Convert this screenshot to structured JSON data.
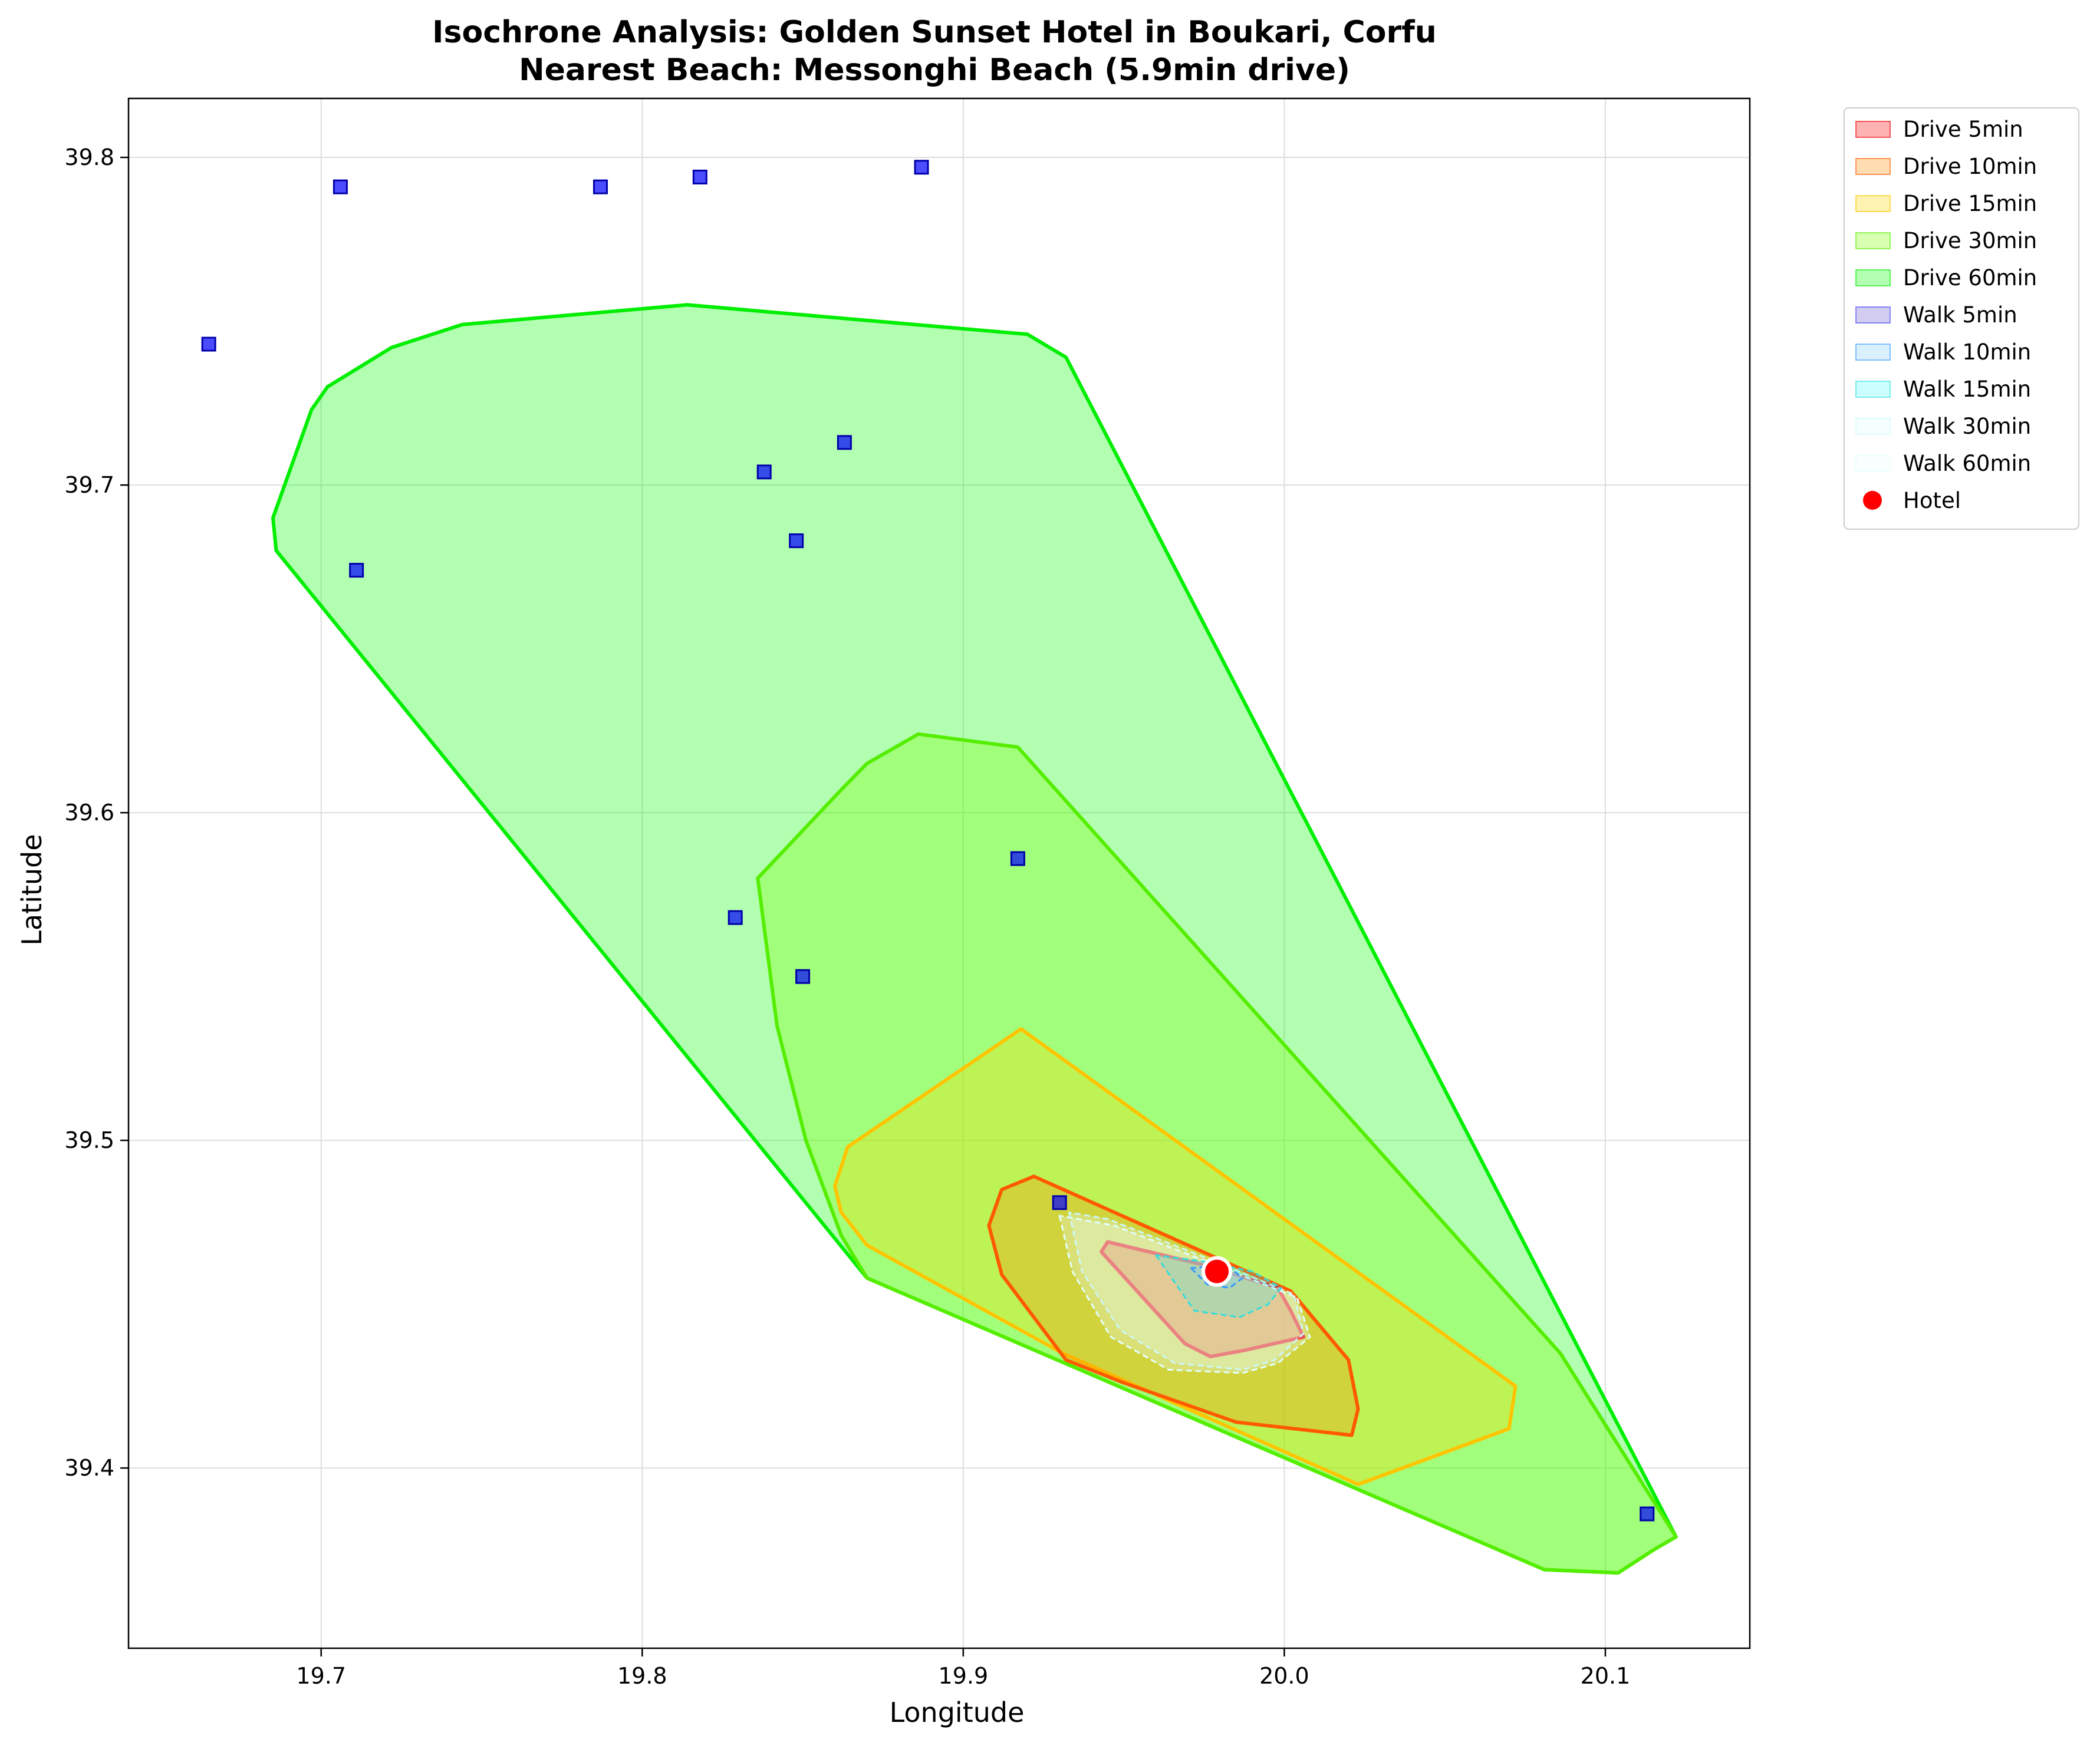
{
  "chart_data": {
    "type": "isochrone-map",
    "title_line1": "Isochrone Analysis: Golden Sunset Hotel in Boukari, Corfu",
    "title_line2": "Nearest Beach: Messonghi Beach (5.9min drive)",
    "xlabel": "Longitude",
    "ylabel": "Latitude",
    "xlim": [
      19.64,
      20.145
    ],
    "ylim": [
      39.345,
      39.818
    ],
    "xticks": [
      19.7,
      19.8,
      19.9,
      20.0,
      20.1
    ],
    "yticks": [
      39.4,
      39.5,
      39.6,
      39.7,
      39.8
    ],
    "xtick_labels": [
      "19.7",
      "19.8",
      "19.9",
      "20.0",
      "20.1"
    ],
    "ytick_labels": [
      "39.4",
      "39.5",
      "39.6",
      "39.7",
      "39.8"
    ],
    "grid": true,
    "legend_position": "outside-top-right",
    "hotel": {
      "name": "Hotel",
      "lon": 19.979,
      "lat": 39.46,
      "color": "#ff0000"
    },
    "isochrones": [
      {
        "name": "Drive 60min",
        "mode": "drive",
        "minutes": 60,
        "fill": "#00ff00",
        "edge": "#00ee00",
        "alpha": 0.3,
        "dash": false,
        "polygon": [
          [
            19.686,
            39.68
          ],
          [
            19.685,
            39.69
          ],
          [
            19.697,
            39.723
          ],
          [
            19.702,
            39.73
          ],
          [
            19.722,
            39.742
          ],
          [
            19.744,
            39.749
          ],
          [
            19.814,
            39.755
          ],
          [
            19.92,
            39.746
          ],
          [
            19.932,
            39.739
          ],
          [
            20.122,
            39.379
          ],
          [
            20.115,
            39.375
          ],
          [
            20.104,
            39.368
          ],
          [
            20.081,
            39.369
          ],
          [
            19.87,
            39.458
          ]
        ]
      },
      {
        "name": "Drive 30min",
        "mode": "drive",
        "minutes": 30,
        "fill": "#7fff00",
        "edge": "#55ee00",
        "alpha": 0.3,
        "dash": false,
        "polygon": [
          [
            19.836,
            39.58
          ],
          [
            19.842,
            39.535
          ],
          [
            19.851,
            39.5
          ],
          [
            19.862,
            39.471
          ],
          [
            19.87,
            39.458
          ],
          [
            20.081,
            39.369
          ],
          [
            20.104,
            39.368
          ],
          [
            20.115,
            39.375
          ],
          [
            20.122,
            39.379
          ],
          [
            20.086,
            39.435
          ],
          [
            19.917,
            39.62
          ],
          [
            19.886,
            39.624
          ],
          [
            19.87,
            39.615
          ],
          [
            19.862,
            39.607
          ]
        ]
      },
      {
        "name": "Drive 15min",
        "mode": "drive",
        "minutes": 15,
        "fill": "#ffd700",
        "edge": "#ffc400",
        "alpha": 0.3,
        "dash": false,
        "polygon": [
          [
            19.862,
            39.478
          ],
          [
            19.86,
            39.486
          ],
          [
            19.864,
            39.498
          ],
          [
            19.918,
            39.534
          ],
          [
            20.072,
            39.425
          ],
          [
            20.07,
            39.412
          ],
          [
            20.023,
            39.395
          ],
          [
            19.931,
            39.435
          ],
          [
            19.87,
            39.468
          ]
        ]
      },
      {
        "name": "Drive 10min",
        "mode": "drive",
        "minutes": 10,
        "fill": "#ff8c00",
        "edge": "#ff5a00",
        "alpha": 0.3,
        "dash": false,
        "polygon": [
          [
            19.908,
            39.474
          ],
          [
            19.912,
            39.485
          ],
          [
            19.922,
            39.489
          ],
          [
            20.002,
            39.454
          ],
          [
            20.02,
            39.433
          ],
          [
            20.023,
            39.418
          ],
          [
            20.021,
            39.41
          ],
          [
            19.985,
            39.414
          ],
          [
            19.95,
            39.426
          ],
          [
            19.932,
            39.433
          ],
          [
            19.912,
            39.459
          ]
        ]
      },
      {
        "name": "Drive 5min",
        "mode": "drive",
        "minutes": 5,
        "fill": "#ff0000",
        "edge": "#ee0000",
        "alpha": 0.3,
        "dash": false,
        "polygon": [
          [
            19.943,
            39.466
          ],
          [
            19.945,
            39.469
          ],
          [
            19.975,
            39.462
          ],
          [
            19.998,
            39.455
          ],
          [
            20.002,
            39.448
          ],
          [
            20.006,
            39.44
          ],
          [
            19.988,
            39.436
          ],
          [
            19.977,
            39.434
          ],
          [
            19.969,
            39.438
          ]
        ]
      },
      {
        "name": "Walk 60min",
        "mode": "walk",
        "minutes": 60,
        "fill": "#f0ffff",
        "edge": "#e0ffff",
        "alpha": 0.3,
        "dash": true,
        "polygon": [
          [
            19.93,
            39.477
          ],
          [
            19.934,
            39.46
          ],
          [
            19.946,
            39.44
          ],
          [
            19.964,
            39.43
          ],
          [
            19.987,
            39.429
          ],
          [
            19.998,
            39.432
          ],
          [
            20.008,
            39.44
          ],
          [
            20.004,
            39.452
          ],
          [
            19.976,
            39.463
          ],
          [
            19.947,
            39.474
          ]
        ]
      },
      {
        "name": "Walk 30min",
        "mode": "walk",
        "minutes": 30,
        "fill": "#e0ffff",
        "edge": "#cdf7f7",
        "alpha": 0.3,
        "dash": true,
        "polygon": [
          [
            19.933,
            39.478
          ],
          [
            19.937,
            39.46
          ],
          [
            19.949,
            39.442
          ],
          [
            19.966,
            39.432
          ],
          [
            19.987,
            39.43
          ],
          [
            19.997,
            39.433
          ],
          [
            20.006,
            39.441
          ],
          [
            20.003,
            39.453
          ],
          [
            19.976,
            39.464
          ],
          [
            19.945,
            39.476
          ]
        ]
      },
      {
        "name": "Walk 15min",
        "mode": "walk",
        "minutes": 15,
        "fill": "#00ffff",
        "edge": "#33dddd",
        "alpha": 0.2,
        "dash": true,
        "polygon": [
          [
            19.96,
            39.465
          ],
          [
            19.972,
            39.448
          ],
          [
            19.986,
            39.446
          ],
          [
            19.995,
            39.45
          ],
          [
            19.999,
            39.455
          ],
          [
            19.99,
            39.46
          ],
          [
            19.975,
            39.463
          ]
        ]
      },
      {
        "name": "Walk 10min",
        "mode": "walk",
        "minutes": 10,
        "fill": "#87cefa",
        "edge": "#3399ff",
        "alpha": 0.3,
        "dash": true,
        "polygon": [
          [
            19.971,
            39.461
          ],
          [
            19.976,
            39.456
          ],
          [
            19.983,
            39.455
          ],
          [
            19.987,
            39.458
          ],
          [
            19.982,
            39.462
          ]
        ]
      },
      {
        "name": "Walk 5min",
        "mode": "walk",
        "minutes": 5,
        "fill": "#6a5acd",
        "edge": "#4444ff",
        "alpha": 0.3,
        "dash": true,
        "polygon": [
          [
            19.975,
            39.461
          ],
          [
            19.978,
            39.458
          ],
          [
            19.982,
            39.459
          ],
          [
            19.98,
            39.461
          ]
        ]
      }
    ],
    "points_of_interest": [
      [
        19.665,
        39.743
      ],
      [
        19.706,
        39.791
      ],
      [
        19.711,
        39.674
      ],
      [
        19.787,
        39.791
      ],
      [
        19.818,
        39.794
      ],
      [
        19.887,
        39.797
      ],
      [
        19.838,
        39.704
      ],
      [
        19.848,
        39.683
      ],
      [
        19.863,
        39.713
      ],
      [
        19.917,
        39.586
      ],
      [
        19.829,
        39.568
      ],
      [
        19.85,
        39.55
      ],
      [
        19.93,
        39.481
      ],
      [
        20.113,
        39.386
      ]
    ],
    "legend": [
      {
        "label": "Drive 5min",
        "fill": "#ff0000",
        "edge": "#ee0000",
        "alpha": 0.3
      },
      {
        "label": "Drive 10min",
        "fill": "#ff8c00",
        "edge": "#ff5a00",
        "alpha": 0.3
      },
      {
        "label": "Drive 15min",
        "fill": "#ffd700",
        "edge": "#ffc400",
        "alpha": 0.3
      },
      {
        "label": "Drive 30min",
        "fill": "#7fff00",
        "edge": "#55ee00",
        "alpha": 0.3
      },
      {
        "label": "Drive 60min",
        "fill": "#00ff00",
        "edge": "#00ee00",
        "alpha": 0.3
      },
      {
        "label": "Walk 5min",
        "fill": "#6a5acd",
        "edge": "#4444ff",
        "alpha": 0.3
      },
      {
        "label": "Walk 10min",
        "fill": "#87cefa",
        "edge": "#3399ff",
        "alpha": 0.3
      },
      {
        "label": "Walk 15min",
        "fill": "#00ffff",
        "edge": "#33dddd",
        "alpha": 0.2
      },
      {
        "label": "Walk 30min",
        "fill": "#e0ffff",
        "edge": "#cdf7f7",
        "alpha": 0.3
      },
      {
        "label": "Walk 60min",
        "fill": "#f0ffff",
        "edge": "#e0ffff",
        "alpha": 0.3
      },
      {
        "label": "Hotel",
        "marker": "circle",
        "fill": "#ff0000"
      }
    ],
    "poi_color": "#0000ff"
  }
}
